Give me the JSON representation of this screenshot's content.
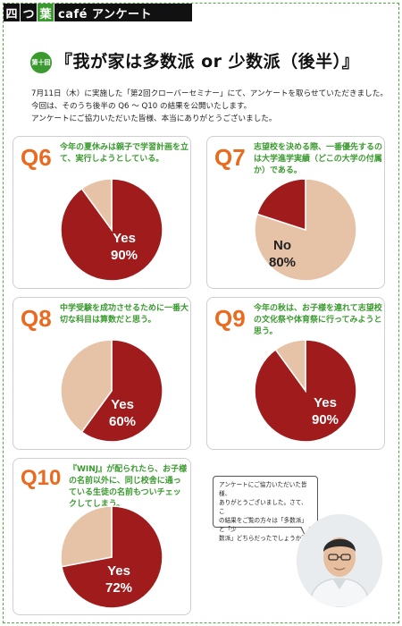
{
  "header": {
    "chars": [
      "四",
      "つ",
      "葉"
    ],
    "brand": "café アンケート"
  },
  "title": {
    "badge": "第十回",
    "text": "『我が家は多数派 or 少数派（後半）』"
  },
  "intro": [
    "7月11日（木）に実施した「第2回クローバーセミナー」にて、アンケートを取らせていただきました。",
    "今回は、そのうち後半の Q6 ～ Q10 の結果を公開いたします。",
    "アンケートにご協力いただいた皆様、本当にありがとうございました。"
  ],
  "colors": {
    "accent_red": "#a01c1c",
    "accent_beige": "#e6c2a6",
    "question_green": "#3a9a2f",
    "qnum_orange": "#ea6a1f"
  },
  "questions": [
    {
      "num": "Q6",
      "text": "今年の夏休みは親子で学習計画を立て、実行しようとしている。",
      "answer": "Yes",
      "percent_text": "90%",
      "majority": 0.9
    },
    {
      "num": "Q7",
      "text": "志望校を決める際、一番優先するのは大学進学実績（どこの大学の付属か）である。",
      "answer": "No",
      "percent_text": "80%",
      "majority": 0.8
    },
    {
      "num": "Q8",
      "text": "中学受験を成功させるために一番大切な科目は算数だと思う。",
      "answer": "Yes",
      "percent_text": "60%",
      "majority": 0.6
    },
    {
      "num": "Q9",
      "text": "今年の秋は、お子様を連れて志望校の文化祭や体育祭に行ってみようと思う。",
      "answer": "Yes",
      "percent_text": "90%",
      "majority": 0.9
    },
    {
      "num": "Q10",
      "text": "『WINJ』が配られたら、お子様の名前以外に、同じ校舎に通っている生徒の名前もついチェックしてしまう。",
      "answer": "Yes",
      "percent_text": "72%",
      "majority": 0.72
    }
  ],
  "bubble": {
    "lines": [
      "アンケートにご協力いただいた皆様、",
      "ありがとうございました。さて、こ",
      "の結果をご覧の方々は「多数派」と「少",
      "数派」どちらだったでしょうか？"
    ]
  }
}
